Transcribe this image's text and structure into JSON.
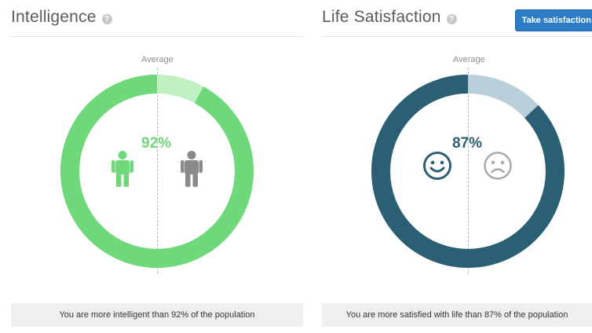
{
  "panels": {
    "intelligence": {
      "title": "Intelligence",
      "help_icon": "question-circle",
      "average_label": "Average",
      "percent_text": "92%",
      "percent_value": 92,
      "footer_text": "You are more intelligent than 92% of the population",
      "colors": {
        "main": "#6fd87a",
        "remainder": "#bff0c2",
        "left_icon": "#6fd87a",
        "right_icon": "#8a8a8a"
      },
      "icons": {
        "left": "person-icon",
        "right": "person-icon"
      }
    },
    "life_satisfaction": {
      "title": "Life Satisfaction",
      "help_icon": "question-circle",
      "button_label": "Take satisfaction",
      "average_label": "Average",
      "percent_text": "87%",
      "percent_value": 87,
      "footer_text": "You are more satisfied with life than 87% of the population",
      "colors": {
        "main": "#2b5f73",
        "remainder": "#b9d0db",
        "happy_icon": "#2b5f73",
        "sad_icon": "#a8a8a8"
      },
      "icons": {
        "left": "smiley-face-icon",
        "right": "sad-face-icon"
      }
    }
  }
}
